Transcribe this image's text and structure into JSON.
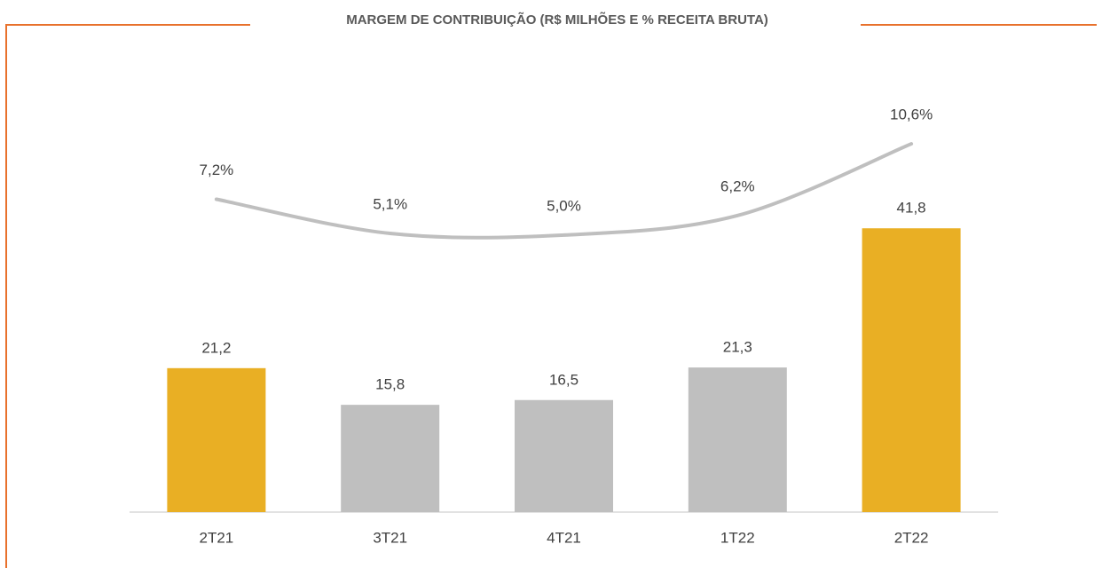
{
  "chart_data": {
    "type": "bar",
    "title": "MARGEM DE CONTRIBUIÇÃO (R$ MILHÕES E % RECEITA BRUTA)",
    "categories": [
      "2T21",
      "3T21",
      "4T21",
      "1T22",
      "2T22"
    ],
    "series": [
      {
        "type": "bar",
        "values": [
          21.2,
          15.8,
          16.5,
          21.3,
          41.8
        ],
        "value_labels": [
          "21,2",
          "15,8",
          "16,5",
          "21,3",
          "41,8"
        ],
        "colors": [
          "#e9af24",
          "#bfbfbf",
          "#bfbfbf",
          "#bfbfbf",
          "#e9af24"
        ]
      },
      {
        "type": "line",
        "axis": "y2",
        "smooth": true,
        "color": "#bfbfbf",
        "values": [
          7.2,
          5.1,
          5.0,
          6.2,
          10.6
        ],
        "value_labels": [
          "7,2%",
          "5,1%",
          "5,0%",
          "6,2%",
          "10,6%"
        ]
      }
    ],
    "ylim": [
      0,
      60
    ],
    "y2lim": [
      -12,
      13
    ]
  }
}
